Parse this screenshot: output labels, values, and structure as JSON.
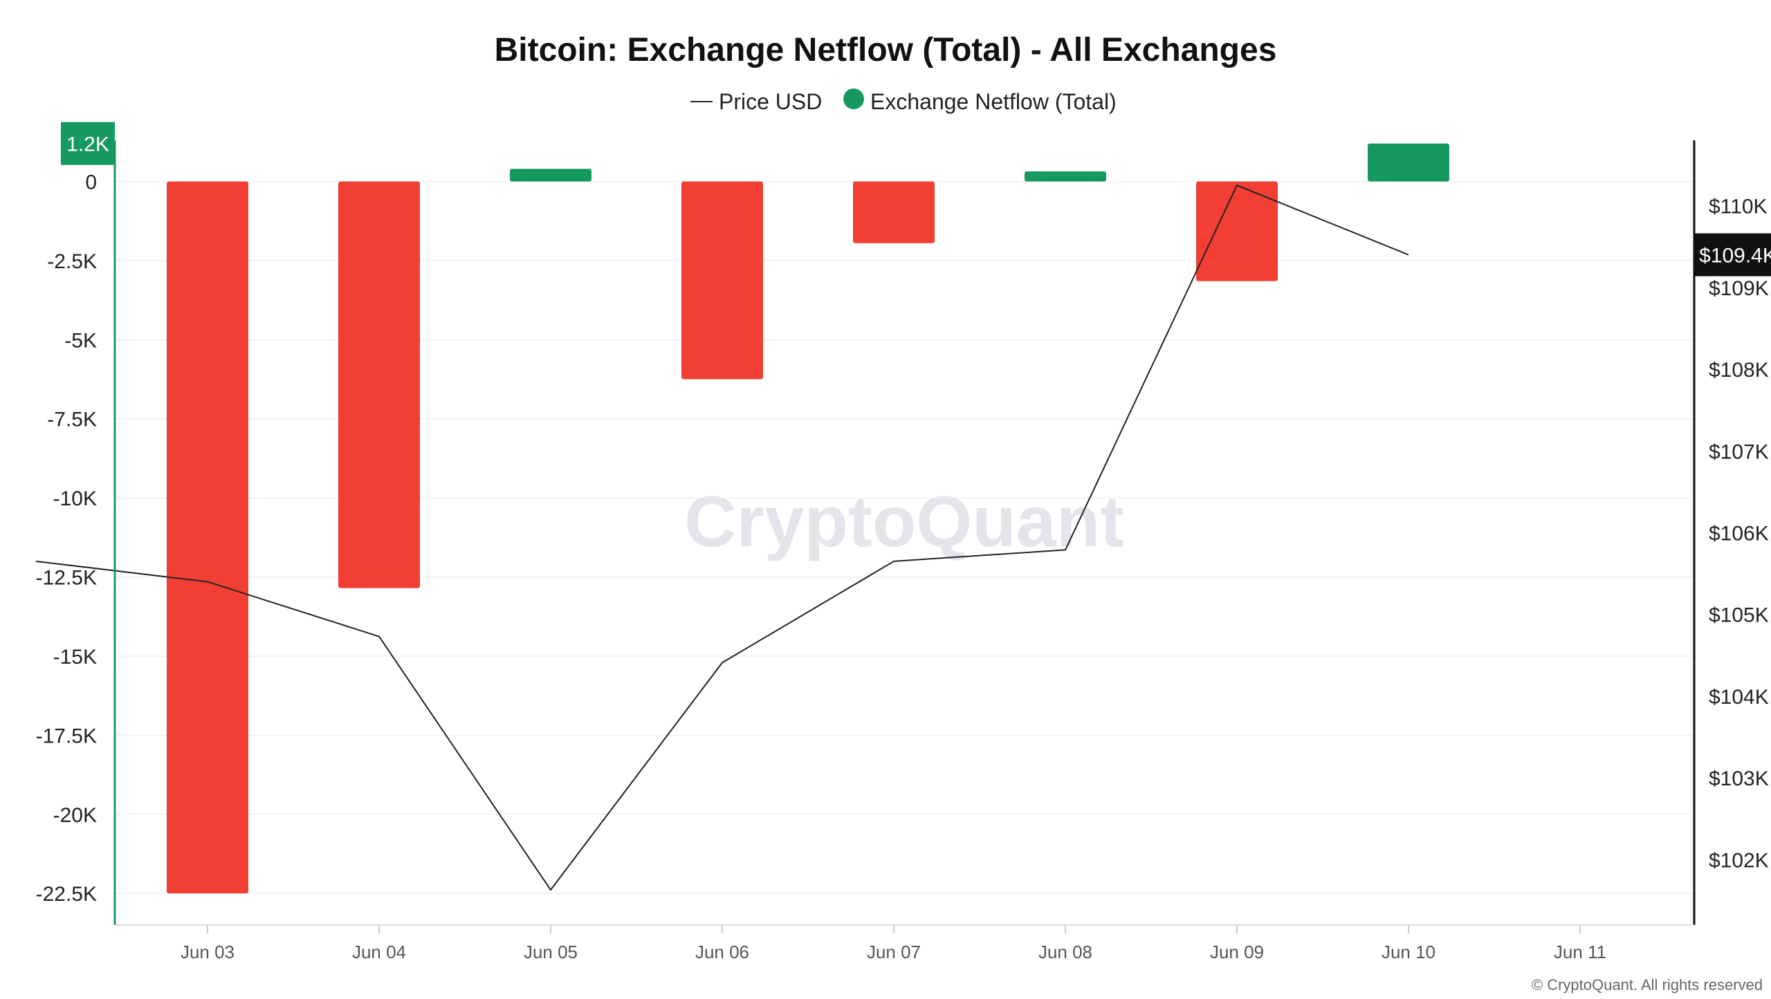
{
  "chart_data": {
    "type": "bar",
    "title": "Bitcoin: Exchange Netflow (Total) - All Exchanges",
    "legend": {
      "placement": "top-center",
      "items": [
        {
          "label": "Price USD",
          "marker": "line",
          "color": "#222222"
        },
        {
          "label": "Exchange Netflow (Total)",
          "marker": "dot",
          "color": "#16995e"
        }
      ]
    },
    "categories": [
      "Jun 03",
      "Jun 04",
      "Jun 05",
      "Jun 06",
      "Jun 07",
      "Jun 08",
      "Jun 09",
      "Jun 10",
      "Jun 11"
    ],
    "series": [
      {
        "name": "Exchange Netflow (Total)",
        "type": "bar",
        "axis": "left",
        "positive_color": "#16995e",
        "negative_color": "#f23f33",
        "values": [
          -22500,
          -12850,
          400,
          -6250,
          -1950,
          320,
          -3150,
          1200,
          null
        ]
      },
      {
        "name": "Price USD",
        "type": "line",
        "axis": "right",
        "color": "#222222",
        "x": [
          "Jun 02",
          "Jun 03",
          "Jun 04",
          "Jun 05",
          "Jun 06",
          "Jun 07",
          "Jun 08",
          "Jun 09",
          "Jun 10"
        ],
        "values": [
          105650,
          105400,
          104730,
          101630,
          104410,
          105650,
          105790,
          110250,
          109400
        ]
      }
    ],
    "left_axis": {
      "ticks": [
        0,
        -2500,
        -5000,
        -7500,
        -10000,
        -12500,
        -15000,
        -17500,
        -20000,
        -22500
      ],
      "tick_labels": [
        "0",
        "-2.5K",
        "-5K",
        "-7.5K",
        "-10K",
        "-12.5K",
        "-15K",
        "-17.5K",
        "-20K",
        "-22.5K"
      ],
      "ylim": [
        -23500,
        1300
      ],
      "badge": "1.2K",
      "badge_value": 1200,
      "color": "#16995e"
    },
    "right_axis": {
      "ticks": [
        102000,
        103000,
        104000,
        105000,
        106000,
        107000,
        108000,
        109000,
        110000
      ],
      "tick_labels": [
        "$102K",
        "$103K",
        "$104K",
        "$105K",
        "$106K",
        "$107K",
        "$108K",
        "$109K",
        "$110K"
      ],
      "ylim": [
        101200,
        110800
      ],
      "badge": "$109.4K",
      "badge_value": 109400,
      "color": "#111111"
    },
    "grid": true,
    "watermark": "CryptoQuant",
    "footer": "© CryptoQuant. All rights reserved"
  }
}
